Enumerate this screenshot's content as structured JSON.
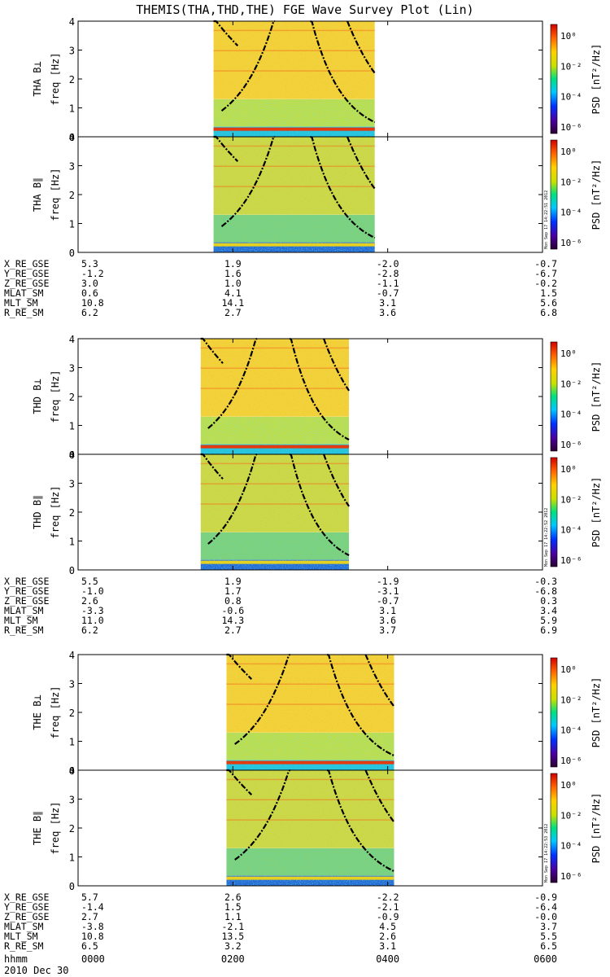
{
  "title": "THEMIS(THA,THD,THE) FGE Wave Survey Plot (Lin)",
  "chart_data": {
    "type": "heatmap",
    "title": "THEMIS(THA,THD,THE) FGE Wave Survey Plot (Lin)",
    "xlabel": "hhmm",
    "date_label": "2010 Dec 30",
    "x_ticks": [
      "0000",
      "0200",
      "0400",
      "0600"
    ],
    "ylabel": "freq [Hz]",
    "ylim": [
      0,
      4
    ],
    "y_ticks": [
      "0",
      "1",
      "2",
      "3",
      "4"
    ],
    "colorbar": {
      "label": "PSD [nT²/Hz]",
      "scale": "log",
      "ticks": [
        "10⁰",
        "10⁻²",
        "10⁻⁴",
        "10⁻⁶"
      ],
      "colors": [
        "#2a0030",
        "#4a00a0",
        "#0030ff",
        "#00c8ff",
        "#00e080",
        "#c8e000",
        "#ffd000",
        "#ff6000",
        "#d00000"
      ]
    },
    "stamps": [
      "Mon Sep 17 14:22:51 2012",
      "Mon Sep 17 14:22:52 2012",
      "Mon Sep 17 14:22:53 2012"
    ],
    "panels": [
      {
        "label": "THA B⊥",
        "probe": "THA",
        "component": "perp",
        "data_range_hhmm": [
          "0145",
          "0350"
        ]
      },
      {
        "label": "THA B∥",
        "probe": "THA",
        "component": "par",
        "data_range_hhmm": [
          "0145",
          "0350"
        ]
      },
      {
        "label": "THD B⊥",
        "probe": "THD",
        "component": "perp",
        "data_range_hhmm": [
          "0135",
          "0330"
        ]
      },
      {
        "label": "THD B∥",
        "probe": "THD",
        "component": "par",
        "data_range_hhmm": [
          "0135",
          "0330"
        ]
      },
      {
        "label": "THE B⊥",
        "probe": "THE",
        "component": "perp",
        "data_range_hhmm": [
          "0155",
          "0405"
        ]
      },
      {
        "label": "THE B∥",
        "probe": "THE",
        "component": "par",
        "data_range_hhmm": [
          "0155",
          "0405"
        ]
      }
    ],
    "ephemeris": [
      {
        "probe": "THA",
        "rows": [
          {
            "label": "X_RE_GSE",
            "values": [
              "5.3",
              "1.9",
              "-2.0",
              "-0.7"
            ]
          },
          {
            "label": "Y_RE_GSE",
            "values": [
              "-1.2",
              "1.6",
              "-2.8",
              "-6.7"
            ]
          },
          {
            "label": "Z_RE_GSE",
            "values": [
              "3.0",
              "1.0",
              "-1.1",
              "-0.2"
            ]
          },
          {
            "label": "MLAT_SM",
            "values": [
              "0.6",
              "4.1",
              "-0.7",
              "1.5"
            ]
          },
          {
            "label": "MLT_SM",
            "values": [
              "10.8",
              "14.1",
              "3.1",
              "5.6"
            ]
          },
          {
            "label": "R_RE_SM",
            "values": [
              "6.2",
              "2.7",
              "3.6",
              "6.8"
            ]
          }
        ]
      },
      {
        "probe": "THD",
        "rows": [
          {
            "label": "X_RE_GSE",
            "values": [
              "5.5",
              "1.9",
              "-1.9",
              "-0.3"
            ]
          },
          {
            "label": "Y_RE_GSE",
            "values": [
              "-1.0",
              "1.7",
              "-3.1",
              "-6.8"
            ]
          },
          {
            "label": "Z_RE_GSE",
            "values": [
              "2.6",
              "0.8",
              "-0.7",
              "0.3"
            ]
          },
          {
            "label": "MLAT_SM",
            "values": [
              "-3.3",
              "-0.6",
              "3.1",
              "3.4"
            ]
          },
          {
            "label": "MLT_SM",
            "values": [
              "11.0",
              "14.3",
              "3.6",
              "5.9"
            ]
          },
          {
            "label": "R_RE_SM",
            "values": [
              "6.2",
              "2.7",
              "3.7",
              "6.9"
            ]
          }
        ]
      },
      {
        "probe": "THE",
        "rows": [
          {
            "label": "X_RE_GSE",
            "values": [
              "5.7",
              "2.6",
              "-2.2",
              "-0.9"
            ]
          },
          {
            "label": "Y_RE_GSE",
            "values": [
              "-1.4",
              "1.5",
              "-2.1",
              "-6.4"
            ]
          },
          {
            "label": "Z_RE_GSE",
            "values": [
              "2.7",
              "1.1",
              "-0.9",
              "-0.0"
            ]
          },
          {
            "label": "MLAT_SM",
            "values": [
              "-3.8",
              "-2.1",
              "4.5",
              "3.7"
            ]
          },
          {
            "label": "MLT_SM",
            "values": [
              "10.8",
              "13.5",
              "2.6",
              "5.5"
            ]
          },
          {
            "label": "R_RE_SM",
            "values": [
              "6.5",
              "3.2",
              "3.1",
              "6.5"
            ]
          }
        ]
      }
    ]
  }
}
